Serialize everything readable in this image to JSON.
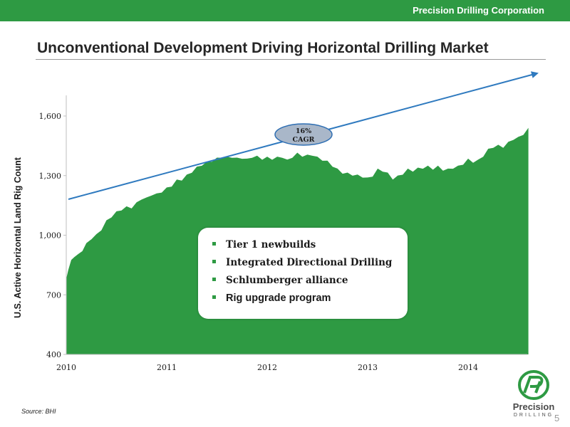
{
  "header": {
    "company": "Precision Drilling Corporation"
  },
  "slide": {
    "title": "Unconventional Development Driving Horizontal Drilling Market",
    "source": "Source: BHI",
    "page_number": "5",
    "logo": {
      "word": "Precision",
      "sub": "DRILLING"
    }
  },
  "callout": {
    "items": [
      "Tier 1 newbuilds",
      "Integrated Directional Drilling",
      "Schlumberger alliance",
      "Rig upgrade program"
    ]
  },
  "colors": {
    "brand_green": "#2e9a43",
    "area_fill": "#2e9a43",
    "trend_line": "#2f7abf",
    "cagr_fill": "#a9b7c9"
  },
  "chart_data": {
    "type": "area",
    "title": "Unconventional Development Driving Horizontal Drilling Market",
    "ylabel": "U.S. Active Horizontal  Land Rig Count",
    "xlabel": "",
    "ylim": [
      400,
      1700
    ],
    "xlim": [
      2010.0,
      2014.6
    ],
    "yticks": [
      400,
      700,
      1000,
      1300,
      1600
    ],
    "ytick_labels": [
      "400",
      "700",
      "1,000",
      "1,300",
      "1,600"
    ],
    "xticks": [
      2010,
      2011,
      2012,
      2013,
      2014
    ],
    "xtick_labels": [
      "2010",
      "2011",
      "2012",
      "2013",
      "2014"
    ],
    "grid": false,
    "legend": "none",
    "series": [
      {
        "x": [
          2010.0,
          2010.02,
          2010.05,
          2010.08,
          2010.12,
          2010.16,
          2010.2,
          2010.25,
          2010.3,
          2010.35,
          2010.4,
          2010.45,
          2010.5,
          2010.55,
          2010.6,
          2010.65,
          2010.7,
          2010.75,
          2010.8,
          2010.85,
          2010.9,
          2010.95,
          2011.0,
          2011.05,
          2011.1,
          2011.15,
          2011.2,
          2011.25,
          2011.3,
          2011.35,
          2011.4,
          2011.45,
          2011.5,
          2011.55,
          2011.6,
          2011.65,
          2011.7,
          2011.75,
          2011.8,
          2011.85,
          2011.9,
          2011.95,
          2012.0,
          2012.05,
          2012.1,
          2012.15,
          2012.2,
          2012.25,
          2012.3,
          2012.35,
          2012.4,
          2012.45,
          2012.5,
          2012.55,
          2012.6,
          2012.65,
          2012.7,
          2012.75,
          2012.8,
          2012.85,
          2012.9,
          2012.95,
          2013.0,
          2013.05,
          2013.1,
          2013.15,
          2013.2,
          2013.25,
          2013.3,
          2013.35,
          2013.4,
          2013.45,
          2013.5,
          2013.55,
          2013.6,
          2013.65,
          2013.7,
          2013.75,
          2013.8,
          2013.85,
          2013.9,
          2013.95,
          2014.0,
          2014.05,
          2014.1,
          2014.15,
          2014.2,
          2014.25,
          2014.3,
          2014.35,
          2014.4,
          2014.45,
          2014.5,
          2014.55,
          2014.6
        ],
        "values": [
          775,
          830,
          870,
          895,
          900,
          925,
          955,
          985,
          1000,
          1030,
          1070,
          1095,
          1115,
          1130,
          1140,
          1140,
          1160,
          1185,
          1185,
          1205,
          1205,
          1220,
          1235,
          1250,
          1275,
          1280,
          1300,
          1320,
          1340,
          1355,
          1365,
          1375,
          1385,
          1395,
          1390,
          1395,
          1385,
          1390,
          1380,
          1395,
          1395,
          1385,
          1390,
          1385,
          1390,
          1395,
          1375,
          1395,
          1410,
          1400,
          1400,
          1405,
          1390,
          1380,
          1370,
          1350,
          1330,
          1315,
          1310,
          1305,
          1300,
          1295,
          1285,
          1300,
          1330,
          1325,
          1310,
          1285,
          1295,
          1310,
          1330,
          1325,
          1335,
          1340,
          1345,
          1335,
          1345,
          1330,
          1330,
          1340,
          1345,
          1360,
          1380,
          1370,
          1375,
          1400,
          1430,
          1445,
          1450,
          1445,
          1465,
          1485,
          1490,
          1510,
          1535
        ]
      }
    ],
    "annotations": [
      {
        "text": "16%\nCAGR",
        "line1": "16%",
        "line2": "CAGR"
      }
    ]
  }
}
